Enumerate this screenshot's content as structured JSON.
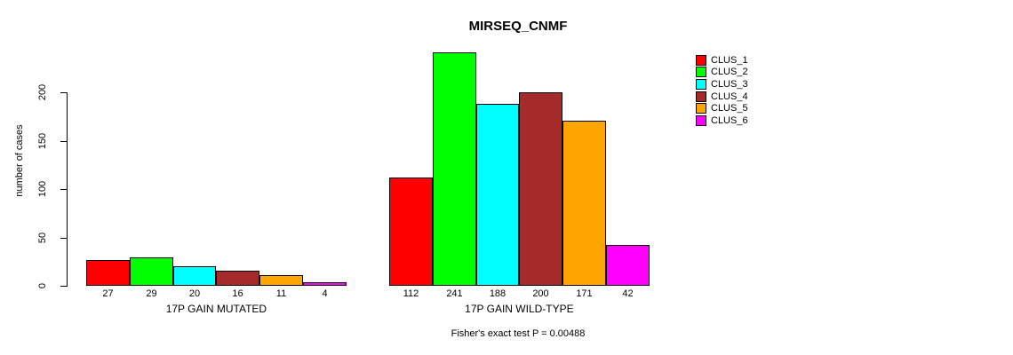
{
  "title": "MIRSEQ_CNMF",
  "footer": "Fisher's exact test P = 0.00488",
  "chart_data": {
    "type": "bar",
    "title": "MIRSEQ_CNMF",
    "subtitle": "Fisher's exact test P = 0.00488",
    "ylabel": "number of cases",
    "xlabel": "",
    "ylim": [
      0,
      250
    ],
    "yticks": [
      0,
      50,
      100,
      150,
      200
    ],
    "grid": false,
    "legend_position": "right",
    "categories": [
      "17P GAIN MUTATED",
      "17P GAIN WILD-TYPE"
    ],
    "series": [
      {
        "name": "CLUS_1",
        "color": "#FF0000",
        "values": [
          27,
          112
        ]
      },
      {
        "name": "CLUS_2",
        "color": "#00FF00",
        "values": [
          29,
          241
        ]
      },
      {
        "name": "CLUS_3",
        "color": "#00FFFF",
        "values": [
          20,
          188
        ]
      },
      {
        "name": "CLUS_4",
        "color": "#A52A2A",
        "values": [
          16,
          200
        ]
      },
      {
        "name": "CLUS_5",
        "color": "#FFA500",
        "values": [
          11,
          171
        ]
      },
      {
        "name": "CLUS_6",
        "color": "#FF00FF",
        "values": [
          4,
          42
        ]
      }
    ],
    "bar_value_labels": true
  }
}
